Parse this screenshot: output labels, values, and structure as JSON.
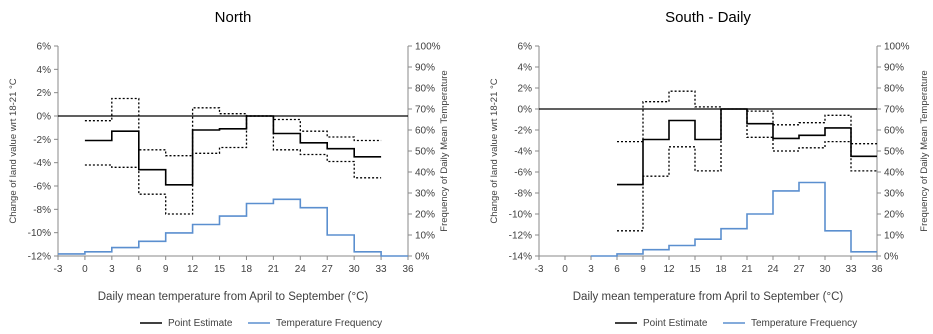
{
  "chart_data": [
    {
      "type": "line",
      "title": "North",
      "xlabel": "Daily mean temperature from April to September (°C)",
      "ylabel": "Change of land value wrt 18-21 °C",
      "y2label": "Frequency of Daily Mean Temperature",
      "x_ticks": [
        -3,
        0,
        3,
        6,
        9,
        12,
        15,
        18,
        21,
        24,
        27,
        30,
        33,
        36
      ],
      "xlim": [
        -3,
        36
      ],
      "ylim": [
        -12,
        6
      ],
      "y_ticks": [
        -12,
        -10,
        -8,
        -6,
        -4,
        -2,
        0,
        2,
        4,
        6
      ],
      "y_tick_labels": [
        "-12%",
        "-10%",
        "-8%",
        "-6%",
        "-4%",
        "-2%",
        "0%",
        "2%",
        "4%",
        "6%"
      ],
      "y2lim": [
        0,
        100
      ],
      "y2_ticks": [
        0,
        10,
        20,
        30,
        40,
        50,
        60,
        70,
        80,
        90,
        100
      ],
      "y2_tick_labels": [
        "0%",
        "10%",
        "20%",
        "30%",
        "40%",
        "50%",
        "60%",
        "70%",
        "80%",
        "90%",
        "100%"
      ],
      "zero_line": 0,
      "legend": {
        "position": "bottom",
        "entries": [
          "Point Estimate",
          "Temperature Frequency"
        ]
      },
      "series": [
        {
          "name": "Point Estimate",
          "style": "solid",
          "color": "#000000",
          "axis": "left",
          "x": [
            0,
            3,
            3,
            6,
            6,
            9,
            9,
            12,
            12,
            15,
            15,
            18,
            18,
            21,
            21,
            24,
            24,
            27,
            27,
            30,
            30,
            33
          ],
          "y": [
            -2.1,
            -2.1,
            -1.3,
            -1.3,
            -4.6,
            -4.6,
            -5.9,
            -5.9,
            -1.2,
            -1.2,
            -1.1,
            -1.1,
            0,
            0,
            -1.5,
            -1.5,
            -2.3,
            -2.3,
            -2.8,
            -2.8,
            -3.5,
            -3.5
          ]
        },
        {
          "name": "Upper bound",
          "style": "dotted",
          "color": "#000000",
          "axis": "left",
          "x": [
            0,
            3,
            3,
            6,
            6,
            9,
            9,
            12,
            12,
            15,
            15,
            18,
            18,
            21,
            21,
            24,
            24,
            27,
            27,
            30,
            30,
            33
          ],
          "y": [
            -0.4,
            -0.4,
            1.5,
            1.5,
            -2.9,
            -2.9,
            -3.4,
            -3.4,
            0.7,
            0.7,
            0.2,
            0.2,
            0,
            0,
            -0.3,
            -0.3,
            -1.3,
            -1.3,
            -1.8,
            -1.8,
            -2.1,
            -2.1
          ]
        },
        {
          "name": "Lower bound",
          "style": "dotted",
          "color": "#000000",
          "axis": "left",
          "x": [
            0,
            3,
            3,
            6,
            6,
            9,
            9,
            12,
            12,
            15,
            15,
            18,
            18,
            21,
            21,
            24,
            24,
            27,
            27,
            30,
            30,
            33
          ],
          "y": [
            -4.2,
            -4.2,
            -4.4,
            -4.4,
            -6.7,
            -6.7,
            -8.4,
            -8.4,
            -3.2,
            -3.2,
            -2.7,
            -2.7,
            0,
            0,
            -2.9,
            -2.9,
            -3.3,
            -3.3,
            -3.9,
            -3.9,
            -5.3,
            -5.3
          ]
        },
        {
          "name": "Temperature Frequency",
          "style": "solid",
          "color": "#5b8fcf",
          "axis": "right",
          "x": [
            -3,
            0,
            0,
            3,
            3,
            6,
            6,
            9,
            9,
            12,
            12,
            15,
            15,
            18,
            18,
            21,
            21,
            24,
            24,
            27,
            27,
            30,
            30,
            33,
            33,
            36
          ],
          "y": [
            1,
            1,
            2,
            2,
            4,
            4,
            7,
            7,
            11,
            11,
            15,
            15,
            19,
            19,
            25,
            25,
            27,
            27,
            23,
            23,
            10,
            10,
            2,
            2,
            0,
            0
          ]
        }
      ]
    },
    {
      "type": "line",
      "title": "South - Daily",
      "xlabel": "Daily mean temperature from April to September (°C)",
      "ylabel": "Change of land value wrt 18-21 °C",
      "y2label": "Frequency of Daily Mean Temperature",
      "x_ticks": [
        -3,
        0,
        3,
        6,
        9,
        12,
        15,
        18,
        21,
        24,
        27,
        30,
        33,
        36
      ],
      "xlim": [
        -3,
        36
      ],
      "ylim": [
        -14,
        6
      ],
      "y_ticks": [
        -14,
        -12,
        -10,
        -8,
        -6,
        -4,
        -2,
        0,
        2,
        4,
        6
      ],
      "y_tick_labels": [
        "-14%",
        "-12%",
        "-10%",
        "-8%",
        "-6%",
        "-4%",
        "-2%",
        "0%",
        "2%",
        "4%",
        "6%"
      ],
      "y2lim": [
        0,
        100
      ],
      "y2_ticks": [
        0,
        10,
        20,
        30,
        40,
        50,
        60,
        70,
        80,
        90,
        100
      ],
      "y2_tick_labels": [
        "0%",
        "10%",
        "20%",
        "30%",
        "40%",
        "50%",
        "60%",
        "70%",
        "80%",
        "90%",
        "100%"
      ],
      "zero_line": 0,
      "legend": {
        "position": "bottom",
        "entries": [
          "Point Estimate",
          "Temperature Frequency"
        ]
      },
      "series": [
        {
          "name": "Point Estimate",
          "style": "solid",
          "color": "#000000",
          "axis": "left",
          "x": [
            6,
            9,
            9,
            12,
            12,
            15,
            15,
            18,
            18,
            21,
            21,
            24,
            24,
            27,
            27,
            30,
            30,
            33,
            33,
            36
          ],
          "y": [
            -7.2,
            -7.2,
            -2.9,
            -2.9,
            -1.1,
            -1.1,
            -2.9,
            -2.9,
            0,
            0,
            -1.4,
            -1.4,
            -2.8,
            -2.8,
            -2.5,
            -2.5,
            -1.8,
            -1.8,
            -4.5,
            -4.5
          ]
        },
        {
          "name": "Upper bound",
          "style": "dotted",
          "color": "#000000",
          "axis": "left",
          "x": [
            6,
            9,
            9,
            12,
            12,
            15,
            15,
            18,
            18,
            21,
            21,
            24,
            24,
            27,
            27,
            30,
            30,
            33,
            33,
            36
          ],
          "y": [
            -3.1,
            -3.1,
            0.7,
            0.7,
            1.7,
            1.7,
            0.2,
            0.2,
            0,
            0,
            -0.2,
            -0.2,
            -1.5,
            -1.5,
            -1.3,
            -1.3,
            -0.6,
            -0.6,
            -3.3,
            -3.3
          ]
        },
        {
          "name": "Lower bound",
          "style": "dotted",
          "color": "#000000",
          "axis": "left",
          "x": [
            6,
            9,
            9,
            12,
            12,
            15,
            15,
            18,
            18,
            21,
            21,
            24,
            24,
            27,
            27,
            30,
            30,
            33,
            33,
            36
          ],
          "y": [
            -11.6,
            -11.6,
            -6.4,
            -6.4,
            -3.6,
            -3.6,
            -5.9,
            -5.9,
            0,
            0,
            -2.7,
            -2.7,
            -4.0,
            -4.0,
            -3.7,
            -3.7,
            -3.1,
            -3.1,
            -5.9,
            -5.9
          ]
        },
        {
          "name": "Temperature Frequency",
          "style": "solid",
          "color": "#5b8fcf",
          "axis": "right",
          "x": [
            3,
            6,
            6,
            9,
            9,
            12,
            12,
            15,
            15,
            18,
            18,
            21,
            21,
            24,
            24,
            27,
            27,
            30,
            30,
            33,
            33,
            36
          ],
          "y": [
            0,
            0,
            1,
            1,
            3,
            3,
            5,
            5,
            8,
            8,
            13,
            13,
            20,
            20,
            31,
            31,
            35,
            35,
            12,
            12,
            2,
            2
          ]
        }
      ]
    }
  ]
}
